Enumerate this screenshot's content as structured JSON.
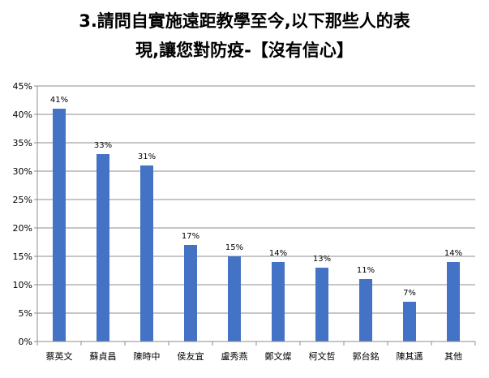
{
  "chart_data": {
    "type": "bar",
    "title_lines": [
      "3.請問自實施遠距教學至今,以下那些人的表",
      "現,讓您對防疫-【沒有信心】"
    ],
    "categories": [
      "蔡英文",
      "蘇貞昌",
      "陳時中",
      "侯友宜",
      "盧秀燕",
      "鄭文燦",
      "柯文哲",
      "郭台銘",
      "陳其邁",
      "其他"
    ],
    "values": [
      41,
      33,
      31,
      17,
      15,
      14,
      13,
      11,
      7,
      14
    ],
    "data_labels": [
      "41%",
      "33%",
      "31%",
      "17%",
      "15%",
      "14%",
      "13%",
      "11%",
      "7%",
      "14%"
    ],
    "y_ticks": [
      "0%",
      "5%",
      "10%",
      "15%",
      "20%",
      "25%",
      "30%",
      "35%",
      "40%",
      "45%"
    ],
    "ylim": [
      0,
      45
    ],
    "bar_color": "#4472c4",
    "grid": true,
    "legend": false
  }
}
